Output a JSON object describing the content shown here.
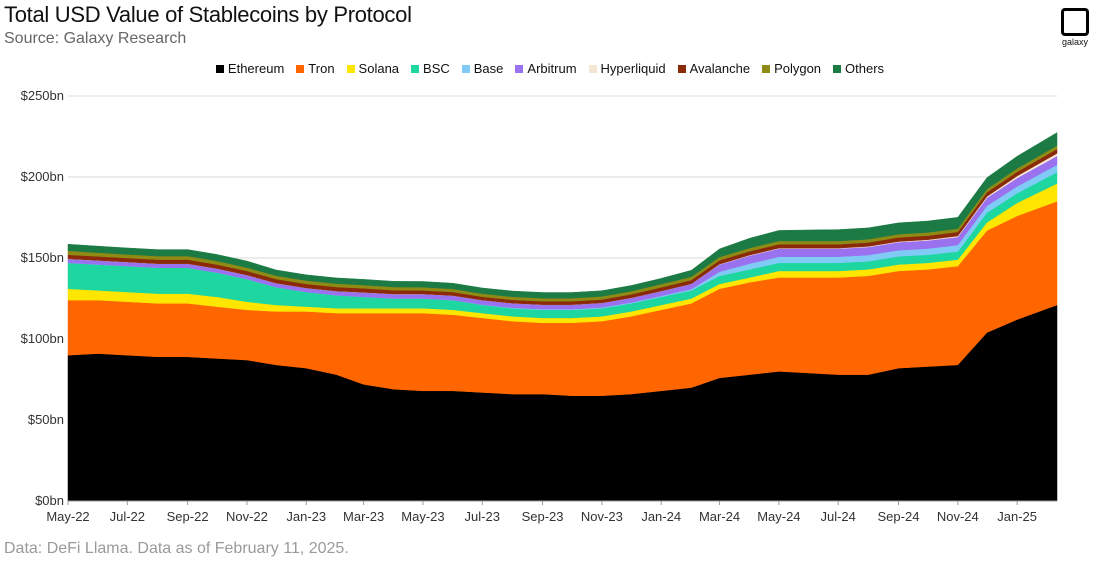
{
  "header": {
    "title": "Total USD Value of Stablecoins by Protocol",
    "subtitle": "Source: Galaxy Research",
    "logo_text": "galaxy"
  },
  "footer": {
    "note": "Data: DeFi Llama. Data as of February 11, 2025."
  },
  "chart_data": {
    "type": "area",
    "stacked": true,
    "legend_position": "top",
    "grid": true,
    "x": [
      "2022-05-01",
      "2022-06-01",
      "2022-07-01",
      "2022-08-01",
      "2022-09-01",
      "2022-10-01",
      "2022-11-01",
      "2022-12-01",
      "2023-01-01",
      "2023-02-01",
      "2023-03-01",
      "2023-04-01",
      "2023-05-01",
      "2023-06-01",
      "2023-07-01",
      "2023-08-01",
      "2023-09-01",
      "2023-10-01",
      "2023-11-01",
      "2023-12-01",
      "2024-01-01",
      "2024-02-01",
      "2024-03-01",
      "2024-04-01",
      "2024-05-01",
      "2024-06-01",
      "2024-07-01",
      "2024-08-01",
      "2024-09-01",
      "2024-10-01",
      "2024-11-01",
      "2024-12-01",
      "2025-01-01",
      "2025-02-11"
    ],
    "x_tick_labels": [
      "May-22",
      "Jul-22",
      "Sep-22",
      "Nov-22",
      "Jan-23",
      "Mar-23",
      "May-23",
      "Jul-23",
      "Sep-23",
      "Nov-23",
      "Jan-24",
      "Mar-24",
      "May-24",
      "Jul-24",
      "Sep-24",
      "Nov-24",
      "Jan-25"
    ],
    "y_tick_labels": [
      "$0bn",
      "$50bn",
      "$100bn",
      "$150bn",
      "$200bn",
      "$250bn"
    ],
    "ylim": [
      0,
      250
    ],
    "y_unit": "bn USD",
    "series": [
      {
        "name": "Ethereum",
        "color": "#000000",
        "values": [
          90,
          91,
          90,
          89,
          89,
          88,
          87,
          84,
          82,
          78,
          72,
          69,
          68,
          68,
          67,
          66,
          66,
          65,
          65,
          66,
          68,
          70,
          76,
          78,
          80,
          79,
          78,
          78,
          82,
          83,
          84,
          104,
          112,
          121
        ]
      },
      {
        "name": "Tron",
        "color": "#ff6600",
        "values": [
          34,
          33,
          33,
          33,
          33,
          32,
          31,
          33,
          35,
          38,
          44,
          47,
          48,
          47,
          46,
          45,
          44,
          45,
          46,
          48,
          50,
          52,
          55,
          57,
          58,
          59,
          60,
          61,
          60,
          60,
          61,
          63,
          64,
          64
        ]
      },
      {
        "name": "Solana",
        "color": "#ffe600",
        "values": [
          7,
          6,
          6,
          6,
          6,
          6,
          5,
          4,
          3,
          3,
          3,
          3,
          3,
          3,
          3,
          3,
          3,
          3,
          3,
          3,
          3,
          3,
          3,
          3,
          4,
          4,
          4,
          4,
          4,
          4,
          4,
          5,
          8,
          11
        ]
      },
      {
        "name": "BSC",
        "color": "#1dd6a0",
        "values": [
          16,
          16,
          16,
          16,
          16,
          15,
          14,
          11,
          9,
          8,
          7,
          6,
          6,
          6,
          5,
          5,
          5,
          5,
          5,
          5,
          5,
          5,
          5,
          5,
          5,
          5,
          5,
          5,
          5,
          5,
          5,
          6,
          6,
          7
        ]
      },
      {
        "name": "Base",
        "color": "#7fcbf5",
        "values": [
          0,
          0,
          0,
          0,
          0,
          0,
          0,
          0,
          0,
          0,
          0,
          0,
          0,
          0,
          0.2,
          0.3,
          0.4,
          0.4,
          0.5,
          0.5,
          0.6,
          0.8,
          2.5,
          3.5,
          3.8,
          3.8,
          3.8,
          3.8,
          3.8,
          3.8,
          4,
          4.2,
          4.2,
          4.5
        ]
      },
      {
        "name": "Arbitrum",
        "color": "#9a72f0",
        "values": [
          2.5,
          2.5,
          2.5,
          2.5,
          2.5,
          2.5,
          2.5,
          2.5,
          2.5,
          2.6,
          2.8,
          2.8,
          2.8,
          2.8,
          2.8,
          2.8,
          2.8,
          2.8,
          2.8,
          2.9,
          3.0,
          3.3,
          4.5,
          5,
          5,
          5,
          5,
          5,
          5,
          5,
          5,
          5,
          5.2,
          5.5
        ]
      },
      {
        "name": "Hyperliquid",
        "color": "#f5e6d3",
        "values": [
          0,
          0,
          0,
          0,
          0,
          0,
          0,
          0,
          0,
          0,
          0,
          0,
          0,
          0,
          0,
          0,
          0,
          0,
          0,
          0,
          0,
          0,
          0.2,
          0.3,
          0.3,
          0.3,
          0.3,
          0.4,
          0.4,
          0.5,
          0.6,
          0.8,
          1.2,
          1.6
        ]
      },
      {
        "name": "Avalanche",
        "color": "#8b2a0a",
        "values": [
          2.5,
          2.5,
          2.5,
          2.5,
          2.5,
          2.5,
          2.5,
          2.5,
          2.5,
          2.5,
          2.5,
          2.3,
          2.2,
          2.2,
          2.1,
          2.1,
          2.1,
          2.1,
          2.1,
          2.2,
          2.3,
          2.3,
          2.4,
          2.4,
          2.4,
          2.4,
          2.4,
          2.4,
          2.5,
          2.5,
          2.5,
          2.6,
          2.6,
          2.7
        ]
      },
      {
        "name": "Polygon",
        "color": "#8f8a13",
        "values": [
          2.5,
          2.3,
          2.2,
          2.2,
          2.2,
          2.2,
          2.1,
          2.1,
          2.1,
          2.1,
          2.0,
          2.0,
          2.0,
          1.9,
          1.9,
          1.9,
          1.9,
          1.9,
          1.9,
          1.9,
          2.0,
          2.0,
          2.0,
          2.0,
          2.0,
          2.0,
          2.0,
          2.0,
          2.0,
          2.0,
          2.0,
          2.0,
          2.1,
          2.1
        ]
      },
      {
        "name": "Others",
        "color": "#1c7a44",
        "values": [
          4,
          4,
          4,
          4,
          4,
          4,
          4,
          3.5,
          3.5,
          3.5,
          3.5,
          3.5,
          3.5,
          3.5,
          3.5,
          3.5,
          3.5,
          3.5,
          3.5,
          3.5,
          3.5,
          4,
          5,
          6,
          6.5,
          6.8,
          7,
          7,
          7,
          7,
          7,
          7,
          7.5,
          8
        ]
      }
    ]
  }
}
